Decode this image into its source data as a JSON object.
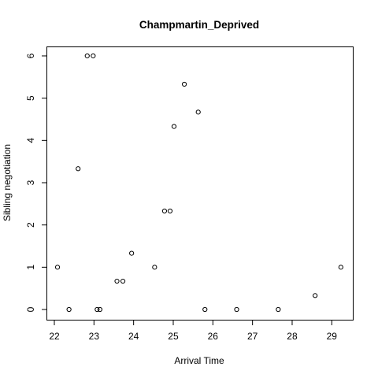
{
  "chart_data": {
    "type": "scatter",
    "title": "Champmartin_Deprived",
    "xlabel": "Arrival Time",
    "ylabel": "Sibling negotiation",
    "xlim": [
      22.0,
      29.3
    ],
    "ylim": [
      0,
      6
    ],
    "x_ticks": [
      22,
      23,
      24,
      25,
      26,
      27,
      28,
      29
    ],
    "y_ticks": [
      0,
      1,
      2,
      3,
      4,
      5,
      6
    ],
    "grid": false,
    "points": [
      {
        "x": 22.08,
        "y": 1.0
      },
      {
        "x": 22.37,
        "y": 0.0
      },
      {
        "x": 22.6,
        "y": 3.33
      },
      {
        "x": 22.83,
        "y": 6.0
      },
      {
        "x": 22.98,
        "y": 6.0
      },
      {
        "x": 23.08,
        "y": 0.0
      },
      {
        "x": 23.15,
        "y": 0.0
      },
      {
        "x": 23.58,
        "y": 0.67
      },
      {
        "x": 23.73,
        "y": 0.67
      },
      {
        "x": 23.95,
        "y": 1.33
      },
      {
        "x": 24.53,
        "y": 1.0
      },
      {
        "x": 24.78,
        "y": 2.33
      },
      {
        "x": 24.92,
        "y": 2.33
      },
      {
        "x": 25.02,
        "y": 4.33
      },
      {
        "x": 25.28,
        "y": 5.33
      },
      {
        "x": 25.63,
        "y": 4.67
      },
      {
        "x": 25.8,
        "y": 0.0
      },
      {
        "x": 26.6,
        "y": 0.0
      },
      {
        "x": 27.65,
        "y": 0.0
      },
      {
        "x": 28.58,
        "y": 0.33
      },
      {
        "x": 29.23,
        "y": 1.0
      }
    ]
  }
}
